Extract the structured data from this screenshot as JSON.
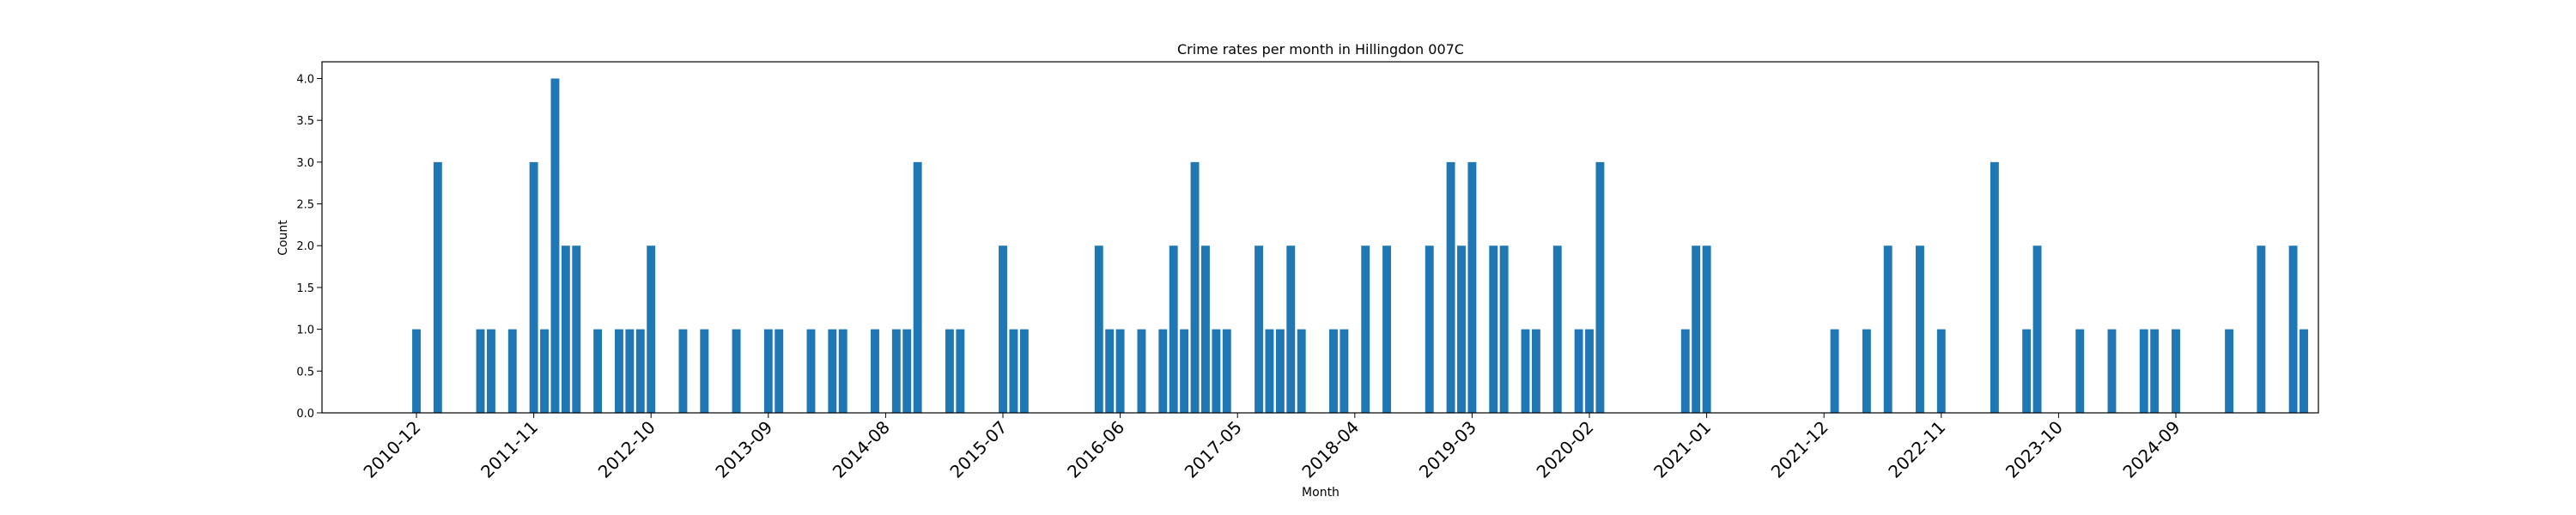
{
  "chart_data": {
    "type": "bar",
    "title": "Crime rates per month in Hillingdon 007C",
    "xlabel": "Month",
    "ylabel": "Count",
    "ylim": [
      0,
      4.2
    ],
    "yticks": [
      "0.0",
      "0.5",
      "1.0",
      "1.5",
      "2.0",
      "2.5",
      "3.0",
      "3.5",
      "4.0"
    ],
    "xtick_labels": [
      "2010-12",
      "2011-11",
      "2012-10",
      "2013-09",
      "2014-08",
      "2015-07",
      "2016-06",
      "2017-05",
      "2018-04",
      "2019-03",
      "2020-02",
      "2021-01",
      "2021-12",
      "2022-11",
      "2023-10",
      "2024-09"
    ],
    "grid": false,
    "bar_color": "#1f77b4",
    "months": [
      "2010-12",
      "2011-02",
      "2011-06",
      "2011-07",
      "2011-09",
      "2011-11",
      "2011-12",
      "2012-01",
      "2012-02",
      "2012-03",
      "2012-05",
      "2012-07",
      "2012-08",
      "2012-09",
      "2012-10",
      "2013-01",
      "2013-03",
      "2013-06",
      "2013-09",
      "2013-10",
      "2014-01",
      "2014-03",
      "2014-04",
      "2014-07",
      "2014-09",
      "2014-10",
      "2014-11",
      "2015-02",
      "2015-03",
      "2015-07",
      "2015-08",
      "2015-09",
      "2016-04",
      "2016-05",
      "2016-06",
      "2016-08",
      "2016-10",
      "2016-11",
      "2016-12",
      "2017-01",
      "2017-02",
      "2017-03",
      "2017-04",
      "2017-07",
      "2017-08",
      "2017-09",
      "2017-10",
      "2017-11",
      "2018-02",
      "2018-03",
      "2018-05",
      "2018-07",
      "2018-11",
      "2019-01",
      "2019-02",
      "2019-03",
      "2019-05",
      "2019-06",
      "2019-08",
      "2019-09",
      "2019-11",
      "2020-01",
      "2020-02",
      "2020-03",
      "2020-11",
      "2020-12",
      "2021-01",
      "2022-01",
      "2022-04",
      "2022-06",
      "2022-09",
      "2022-11",
      "2023-04",
      "2023-07",
      "2023-08",
      "2023-12",
      "2024-03",
      "2024-06",
      "2024-07",
      "2024-09",
      "2025-02",
      "2025-05",
      "2025-08",
      "2025-09"
    ],
    "values": [
      1,
      3,
      1,
      1,
      1,
      3,
      1,
      4,
      2,
      2,
      1,
      1,
      1,
      1,
      2,
      1,
      1,
      1,
      1,
      1,
      1,
      1,
      1,
      1,
      1,
      1,
      3,
      1,
      1,
      2,
      1,
      1,
      2,
      1,
      1,
      1,
      1,
      2,
      1,
      3,
      2,
      1,
      1,
      2,
      1,
      1,
      2,
      1,
      1,
      1,
      2,
      2,
      2,
      3,
      2,
      3,
      2,
      2,
      1,
      1,
      2,
      1,
      1,
      3,
      1,
      2,
      2,
      1,
      1,
      2,
      2,
      1,
      3,
      1,
      2,
      1,
      1,
      1,
      1,
      1,
      1,
      2,
      2,
      1
    ]
  }
}
